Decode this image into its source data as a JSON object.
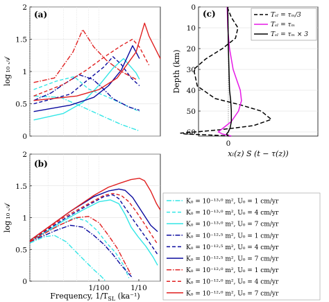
{
  "panels": {
    "a": "(a)",
    "b": "(b)",
    "c": "(c)"
  },
  "colors": {
    "cyan": "#33e6e6",
    "blue": "#0a0a9e",
    "red": "#e02020",
    "magenta": "#e619e6",
    "black": "#000000",
    "grid": "#d8d8d8"
  },
  "axes": {
    "ab_ylabel": "log ₁₀ 𝒜",
    "ab_xlabel": "Frequency, 1/T",
    "ab_xlabel_sub": "SL",
    "ab_xlabel_unit": " (ka⁻¹)",
    "a_yticks": [
      "0",
      "0.5",
      "1",
      "1.5",
      "2"
    ],
    "b_yticks": [
      "0",
      "0.5",
      "1",
      "1.5",
      "2"
    ],
    "x_ticks": [
      "1/100",
      "1/10"
    ],
    "c_ylabel": "Depth (km)",
    "c_yticks": [
      "0",
      "10",
      "20",
      "30",
      "40",
      "50",
      "60"
    ],
    "c_xticks": [
      "0"
    ],
    "c_xlabel": "xₗ(z) S (t − τ(z))"
  },
  "legend_c": [
    {
      "label": "Tₛₗ = τₘ/3",
      "color": "#000000",
      "dash": "6,3"
    },
    {
      "label": "Tₛₗ = τₘ",
      "color": "#e619e6",
      "dash": ""
    },
    {
      "label": "Tₛₗ = τₘ × 3",
      "color": "#000000",
      "dash": ""
    }
  ],
  "legend_main": [
    "K₀ = 10⁻¹³·⁰ m², U₀ = 1 cm/yr",
    "K₀ = 10⁻¹³·⁰ m², U₀ = 4 cm/yr",
    "K₀ = 10⁻¹³·⁰ m², U₀ = 7 cm/yr",
    "K₀ = 10⁻¹²·⁵ m², U₀ = 1 cm/yr",
    "K₀ = 10⁻¹²·⁵ m², U₀ = 4 cm/yr",
    "K₀ = 10⁻¹²·⁵ m², U₀ = 7 cm/yr",
    "K₀ = 10⁻¹²·⁰ m², U₀ = 1 cm/yr",
    "K₀ = 10⁻¹²·⁰ m², U₀ = 4 cm/yr",
    "K₀ = 10⁻¹²·⁰ m², U₀ = 7 cm/yr"
  ],
  "chart_data": [
    {
      "type": "line",
      "panel": "(a)",
      "x_scale": "log",
      "xlim": [
        0.005,
        0.0185
      ],
      "ylim": [
        0,
        2
      ],
      "series": [
        {
          "style": "cyan-dashdot",
          "x": [
            0.0052,
            0.0068,
            0.0085,
            0.0105,
            0.0125,
            0.015
          ],
          "y": [
            0.62,
            0.6,
            0.45,
            0.3,
            0.18,
            0.08
          ]
        },
        {
          "style": "cyan-dashed",
          "x": [
            0.0052,
            0.0065,
            0.0078,
            0.009,
            0.011,
            0.013,
            0.015
          ],
          "y": [
            0.72,
            0.85,
            0.92,
            0.73,
            0.6,
            0.48,
            0.38
          ]
        },
        {
          "style": "cyan-solid",
          "x": [
            0.0052,
            0.007,
            0.0085,
            0.0102,
            0.0115,
            0.0128,
            0.0145,
            0.015
          ],
          "y": [
            0.25,
            0.35,
            0.52,
            0.82,
            1.05,
            1.2,
            0.98,
            0.88
          ]
        },
        {
          "style": "blue-dashdot",
          "x": [
            0.0052,
            0.0062,
            0.007,
            0.0082,
            0.0094,
            0.0104,
            0.0115,
            0.0135,
            0.015
          ],
          "y": [
            0.55,
            0.67,
            0.8,
            0.95,
            0.88,
            0.74,
            0.58,
            0.45,
            0.4
          ]
        },
        {
          "style": "blue-dashed",
          "x": [
            0.0052,
            0.0075,
            0.009,
            0.0105,
            0.0115,
            0.0125,
            0.0138,
            0.015
          ],
          "y": [
            0.5,
            0.65,
            0.88,
            1.07,
            1.23,
            1.11,
            0.9,
            0.78
          ]
        },
        {
          "style": "blue-solid",
          "x": [
            0.0052,
            0.0075,
            0.0095,
            0.011,
            0.0125,
            0.014,
            0.0145,
            0.015
          ],
          "y": [
            0.38,
            0.48,
            0.6,
            0.78,
            1.02,
            1.4,
            1.3,
            1.2
          ]
        },
        {
          "style": "red-dashdot",
          "x": [
            0.0052,
            0.0064,
            0.0077,
            0.0085,
            0.0095,
            0.0108,
            0.0125,
            0.0145
          ],
          "y": [
            0.83,
            0.9,
            1.3,
            1.65,
            1.38,
            1.17,
            1.0,
            0.88
          ]
        },
        {
          "style": "red-dashed",
          "x": [
            0.0052,
            0.007,
            0.0088,
            0.0105,
            0.0125,
            0.014,
            0.015,
            0.0165
          ],
          "y": [
            0.62,
            0.8,
            1.02,
            1.22,
            1.4,
            1.5,
            1.38,
            1.1
          ]
        },
        {
          "style": "red-solid",
          "x": [
            0.0052,
            0.008,
            0.01,
            0.012,
            0.0145,
            0.0158,
            0.0165,
            0.0185
          ],
          "y": [
            0.55,
            0.62,
            0.72,
            0.9,
            1.3,
            1.75,
            1.55,
            1.2
          ]
        }
      ]
    },
    {
      "type": "line",
      "panel": "(b)",
      "x_scale": "log",
      "xlim": [
        0.005,
        0.0185
      ],
      "ylim": [
        0,
        2
      ],
      "series": [
        {
          "style": "cyan-dashdot",
          "x": [
            0.005,
            0.0058,
            0.0064,
            0.0072,
            0.008,
            0.0088,
            0.0095,
            0.0102,
            0.0107
          ],
          "y": [
            0.6,
            0.7,
            0.72,
            0.62,
            0.45,
            0.3,
            0.18,
            0.08,
            0.0
          ]
        },
        {
          "style": "cyan-dashed",
          "x": [
            0.005,
            0.0065,
            0.0078,
            0.0088,
            0.0098,
            0.0108,
            0.0118,
            0.0128,
            0.0135
          ],
          "y": [
            0.65,
            0.85,
            1.0,
            0.95,
            0.8,
            0.6,
            0.45,
            0.25,
            0.05
          ]
        },
        {
          "style": "cyan-solid",
          "x": [
            0.005,
            0.007,
            0.0085,
            0.01,
            0.0112,
            0.0122,
            0.013,
            0.0138,
            0.0148,
            0.016,
            0.0172,
            0.018
          ],
          "y": [
            0.62,
            0.95,
            1.12,
            1.25,
            1.28,
            1.22,
            1.05,
            0.85,
            0.7,
            0.55,
            0.38,
            0.25
          ]
        },
        {
          "style": "blue-dashdot",
          "x": [
            0.005,
            0.0065,
            0.0075,
            0.0085,
            0.0095,
            0.0105,
            0.0115,
            0.0125,
            0.014
          ],
          "y": [
            0.62,
            0.8,
            0.88,
            0.85,
            0.72,
            0.58,
            0.42,
            0.25,
            0.05
          ]
        },
        {
          "style": "blue-dashed",
          "x": [
            0.005,
            0.0072,
            0.009,
            0.0105,
            0.0115,
            0.0122,
            0.0132,
            0.0142,
            0.0152,
            0.0165,
            0.018
          ],
          "y": [
            0.63,
            1.0,
            1.2,
            1.33,
            1.36,
            1.3,
            1.12,
            0.95,
            0.8,
            0.62,
            0.42
          ]
        },
        {
          "style": "blue-solid",
          "x": [
            0.005,
            0.0075,
            0.0095,
            0.011,
            0.0122,
            0.013,
            0.014,
            0.0152,
            0.0168,
            0.018
          ],
          "y": [
            0.64,
            1.1,
            1.33,
            1.42,
            1.45,
            1.43,
            1.32,
            1.12,
            0.88,
            0.78
          ]
        },
        {
          "style": "red-dashdot",
          "x": [
            0.005,
            0.0067,
            0.008,
            0.009,
            0.01,
            0.011,
            0.012,
            0.013,
            0.0138
          ],
          "y": [
            0.62,
            0.88,
            1.0,
            1.02,
            0.92,
            0.72,
            0.52,
            0.28,
            0.1
          ]
        },
        {
          "style": "red-dashed",
          "x": [
            0.005,
            0.007,
            0.009,
            0.0105,
            0.0115,
            0.0125,
            0.0135,
            0.0145,
            0.0158,
            0.017,
            0.018
          ],
          "y": [
            0.63,
            1.0,
            1.22,
            1.35,
            1.38,
            1.35,
            1.25,
            1.1,
            0.9,
            0.72,
            0.58
          ]
        },
        {
          "style": "red-solid",
          "x": [
            0.005,
            0.0075,
            0.0095,
            0.011,
            0.0125,
            0.0138,
            0.015,
            0.0158,
            0.0168,
            0.0178,
            0.0185
          ],
          "y": [
            0.64,
            1.1,
            1.35,
            1.48,
            1.55,
            1.6,
            1.62,
            1.58,
            1.42,
            1.22,
            1.12
          ]
        }
      ]
    },
    {
      "type": "line",
      "panel": "(c)",
      "xlim": [
        -1,
        1
      ],
      "ylim": [
        62,
        0
      ],
      "series": [
        {
          "name": "Tₛₗ = τₘ/3",
          "style": "black-dashed",
          "x": [
            -0.02,
            0.05,
            0.16,
            0.12,
            -0.1,
            -0.38,
            -0.58,
            -0.52,
            -0.22,
            0.2,
            0.55,
            0.72,
            0.42,
            -0.15,
            -0.55,
            -0.8,
            -0.72,
            -0.3,
            0.05
          ],
          "y": [
            0,
            5,
            10,
            15,
            20,
            25,
            30,
            38,
            44,
            47,
            50,
            54,
            57,
            59,
            60,
            60.6,
            61,
            61.5,
            62
          ]
        },
        {
          "name": "Tₛₗ = τₘ",
          "style": "magenta-solid",
          "x": [
            -0.02,
            -0.01,
            0.02,
            0.08,
            0.14,
            0.2,
            0.22,
            0.17,
            0.05,
            -0.08,
            -0.17,
            -0.1,
            0.05
          ],
          "y": [
            0,
            10,
            20,
            30,
            35,
            40,
            45,
            50,
            55,
            58,
            60,
            61,
            62
          ]
        },
        {
          "name": "Tₛₗ = τₘ × 3",
          "style": "black-solid",
          "x": [
            -0.01,
            -0.005,
            0.0,
            0.01,
            0.02,
            0.04,
            0.05,
            0.05,
            0.03,
            0.0,
            -0.03,
            0.0
          ],
          "y": [
            0,
            10,
            20,
            30,
            40,
            45,
            50,
            55,
            58,
            60,
            61,
            62
          ]
        }
      ]
    }
  ]
}
